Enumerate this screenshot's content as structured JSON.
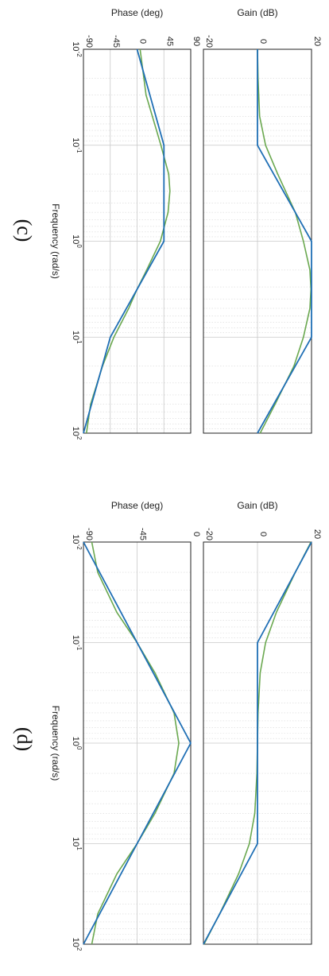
{
  "figure": {
    "xlabel": "Frequency (rad/s)",
    "colors": {
      "approx": "#1f6fb5",
      "exact": "#6aa84f",
      "grid": "#c8c8c8",
      "minorGrid": "#d8d8d8",
      "axis": "#222222"
    }
  },
  "chart_data": [
    {
      "panel_label": "(c)",
      "type": "line",
      "x_scale": "log",
      "xlim": [
        0.01,
        100
      ],
      "x_ticks": [
        0.01,
        0.1,
        1,
        10,
        100
      ],
      "x_tick_labels": [
        "10-2",
        "10-1",
        "100",
        "101",
        "102"
      ],
      "subplots": [
        {
          "ylabel": "Gain (dB)",
          "ylim": [
            -20,
            20
          ],
          "y_ticks": [
            -20,
            0,
            20
          ],
          "y_tick_labels": [
            "-20",
            "0",
            "20"
          ],
          "series": [
            {
              "style": "approx",
              "x": [
                0.01,
                0.1,
                1,
                10,
                100
              ],
              "y": [
                0,
                0,
                20,
                20,
                0
              ]
            },
            {
              "style": "exact",
              "x": [
                0.01,
                0.02,
                0.05,
                0.1,
                0.2,
                0.5,
                1,
                2,
                3.16,
                5,
                10,
                20,
                50,
                100
              ],
              "y": [
                0,
                0.2,
                0.8,
                3,
                7.5,
                14,
                17,
                19.4,
                19.8,
                19.4,
                17,
                13.5,
                6.5,
                1
              ]
            }
          ]
        },
        {
          "ylabel": "Phase (deg)",
          "ylim": [
            -90,
            90
          ],
          "y_ticks": [
            -90,
            -45,
            0,
            45,
            90
          ],
          "y_tick_labels": [
            "-90",
            "-45",
            "0",
            "45",
            "90"
          ],
          "series": [
            {
              "style": "approx",
              "x": [
                0.01,
                0.1,
                1,
                10,
                100
              ],
              "y": [
                0,
                45,
                45,
                -45,
                -90
              ]
            },
            {
              "style": "exact",
              "x": [
                0.01,
                0.03,
                0.1,
                0.2,
                0.3,
                0.5,
                1,
                2,
                3.16,
                5,
                10,
                20,
                50,
                100
              ],
              "y": [
                5,
                15,
                40,
                53,
                55,
                52,
                39,
                16,
                0,
                -14,
                -39,
                -58,
                -78,
                -85
              ]
            }
          ]
        }
      ]
    },
    {
      "panel_label": "(d)",
      "type": "line",
      "x_scale": "log",
      "xlim": [
        0.01,
        100
      ],
      "x_ticks": [
        0.01,
        0.1,
        1,
        10,
        100
      ],
      "x_tick_labels": [
        "10-2",
        "10-1",
        "100",
        "101",
        "102"
      ],
      "subplots": [
        {
          "ylabel": "Gain (dB)",
          "ylim": [
            -20,
            20
          ],
          "y_ticks": [
            -20,
            0,
            20
          ],
          "y_tick_labels": [
            "-20",
            "0",
            "20"
          ],
          "series": [
            {
              "style": "approx",
              "x": [
                0.01,
                0.1,
                10,
                100
              ],
              "y": [
                20,
                0,
                0,
                -20
              ]
            },
            {
              "style": "exact",
              "x": [
                0.01,
                0.02,
                0.05,
                0.1,
                0.2,
                0.5,
                1,
                2,
                5,
                10,
                20,
                50,
                100
              ],
              "y": [
                19.8,
                14,
                7,
                3,
                1,
                0.2,
                0,
                -0.2,
                -1,
                -3,
                -7,
                -14,
                -19.8
              ]
            }
          ]
        },
        {
          "ylabel": "Phase (deg)",
          "ylim": [
            -90,
            0
          ],
          "y_ticks": [
            -90,
            -45,
            0
          ],
          "y_tick_labels": [
            "-90",
            "-45",
            "0"
          ],
          "series": [
            {
              "style": "approx",
              "x": [
                0.01,
                1,
                100
              ],
              "y": [
                -90,
                0,
                -90
              ]
            },
            {
              "style": "exact",
              "x": [
                0.01,
                0.02,
                0.05,
                0.1,
                0.2,
                0.5,
                1,
                2,
                5,
                10,
                20,
                50,
                100
              ],
              "y": [
                -83,
                -78,
                -62,
                -45,
                -30,
                -14,
                -10,
                -14,
                -30,
                -45,
                -62,
                -78,
                -83
              ]
            }
          ]
        }
      ]
    }
  ]
}
